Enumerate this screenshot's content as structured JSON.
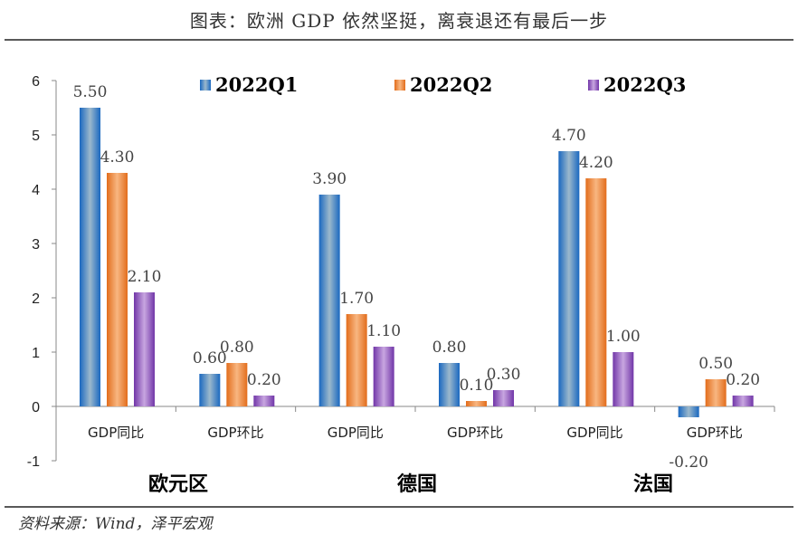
{
  "title": "图表：欧洲 GDP 依然坚挺，离衰退还有最后一步",
  "source": "资料来源：Wind，泽平宏观",
  "chart_data": {
    "type": "bar",
    "title": "图表：欧洲 GDP 依然坚挺，离衰退还有最后一步",
    "categories": [
      "GDP同比",
      "GDP环比",
      "GDP同比",
      "GDP环比",
      "GDP同比",
      "GDP环比"
    ],
    "groups": [
      "欧元区",
      "德国",
      "法国"
    ],
    "series": [
      {
        "name": "2022Q1",
        "values": [
          5.5,
          0.6,
          3.9,
          0.8,
          4.7,
          -0.2
        ],
        "color": "#1f6fc0"
      },
      {
        "name": "2022Q2",
        "values": [
          4.3,
          0.8,
          1.7,
          0.1,
          4.2,
          0.5
        ],
        "color": "#e87722"
      },
      {
        "name": "2022Q3",
        "values": [
          2.1,
          0.2,
          1.1,
          0.3,
          1.0,
          0.2
        ],
        "color": "#7a3fb0"
      }
    ],
    "value_labels": [
      [
        "5.50",
        "0.60",
        "3.90",
        "0.80",
        "4.70",
        "-0.20"
      ],
      [
        "4.30",
        "0.80",
        "1.70",
        "0.10",
        "4.20",
        "0.50"
      ],
      [
        "2.10",
        "0.20",
        "1.10",
        "0.30",
        "1.00",
        "0.20"
      ]
    ],
    "yticks": [
      "6",
      "5",
      "4",
      "3",
      "2",
      "1",
      "0",
      "-1"
    ],
    "ylim": [
      -1,
      6
    ],
    "legend": "top",
    "grid": false
  }
}
